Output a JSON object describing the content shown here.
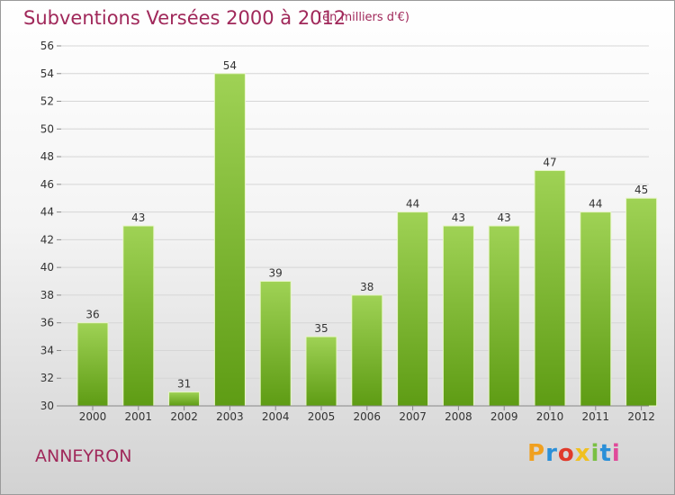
{
  "header": {
    "title": "Subventions Versées 2000 à 2012",
    "subtitle": "(en milliers d'€)"
  },
  "footer": {
    "commune": "ANNEYRON",
    "logo_text": "Proxiti",
    "logo_colors": [
      "#f0a020",
      "#2a8fd8",
      "#e03a2a",
      "#f0c020",
      "#7ac043",
      "#2a8fd8",
      "#e04a9a"
    ]
  },
  "colors": {
    "bar_top": "#9fd255",
    "bar_bottom": "#5e9c14",
    "bar_edge": "#e8f6c8",
    "grid": "#d6d6d6",
    "axis_text": "#333333",
    "title": "#a0285a"
  },
  "chart_data": {
    "type": "bar",
    "categories": [
      "2000",
      "2001",
      "2002",
      "2003",
      "2004",
      "2005",
      "2006",
      "2007",
      "2008",
      "2009",
      "2010",
      "2011",
      "2012"
    ],
    "values": [
      36,
      43,
      31,
      54,
      39,
      35,
      38,
      44,
      43,
      43,
      47,
      44,
      45
    ],
    "title": "Subventions Versées 2000 à 2012",
    "ylabel": "",
    "xlabel": "",
    "ylim": [
      30,
      56
    ],
    "yticks": [
      30,
      32,
      34,
      36,
      38,
      40,
      42,
      44,
      46,
      48,
      50,
      52,
      54,
      56
    ],
    "grid": true,
    "data_labels": true
  }
}
